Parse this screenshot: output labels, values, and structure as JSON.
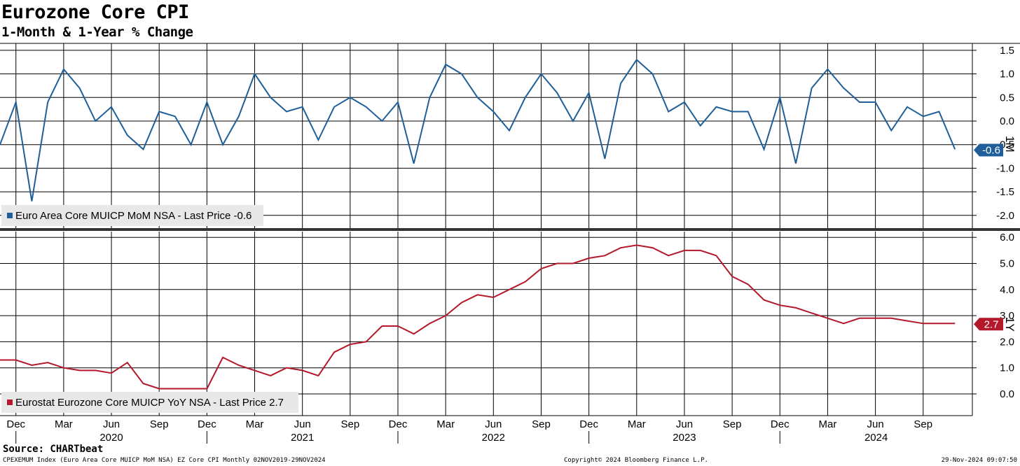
{
  "title": "Eurozone Core CPI",
  "subtitle": "1-Month & 1-Year % Change",
  "source": "Source: CHARTbeat",
  "footer": {
    "left": "CPEXEMUM Index (Euro Area Core MUICP MoM NSA) EZ Core CPI  Monthly 02NOV2019-29NOV2024",
    "center": "Copyright© 2024 Bloomberg Finance L.P.",
    "right": "29-Nov-2024 09:07:50"
  },
  "colors": {
    "mom": "#1f5f99",
    "yoy": "#b3192b"
  },
  "chart_data": [
    {
      "type": "line",
      "panel": "top",
      "axis_label": "1M",
      "last_value_label": "-0.6",
      "legend": "Euro Area Core MUICP MoM NSA - Last Price -0.6",
      "legend_position": "bottom-left",
      "ylim": [
        -2.3,
        1.7
      ],
      "yticks": [
        "1.5",
        "1.0",
        "0.5",
        "0.0",
        "-0.5",
        "-1.0",
        "-1.5",
        "-2.0"
      ],
      "grid": true,
      "x": [
        "2019-11",
        "2019-12",
        "2020-01",
        "2020-02",
        "2020-03",
        "2020-04",
        "2020-05",
        "2020-06",
        "2020-07",
        "2020-08",
        "2020-09",
        "2020-10",
        "2020-11",
        "2020-12",
        "2021-01",
        "2021-02",
        "2021-03",
        "2021-04",
        "2021-05",
        "2021-06",
        "2021-07",
        "2021-08",
        "2021-09",
        "2021-10",
        "2021-11",
        "2021-12",
        "2022-01",
        "2022-02",
        "2022-03",
        "2022-04",
        "2022-05",
        "2022-06",
        "2022-07",
        "2022-08",
        "2022-09",
        "2022-10",
        "2022-11",
        "2022-12",
        "2023-01",
        "2023-02",
        "2023-03",
        "2023-04",
        "2023-05",
        "2023-06",
        "2023-07",
        "2023-08",
        "2023-09",
        "2023-10",
        "2023-11",
        "2023-12",
        "2024-01",
        "2024-02",
        "2024-03",
        "2024-04",
        "2024-05",
        "2024-06",
        "2024-07",
        "2024-08",
        "2024-09",
        "2024-10",
        "2024-11"
      ],
      "series": [
        {
          "name": "Euro Area Core MUICP MoM NSA",
          "values": [
            -0.5,
            0.4,
            -1.7,
            0.4,
            1.1,
            0.7,
            0.0,
            0.3,
            -0.3,
            -0.6,
            0.2,
            0.1,
            -0.5,
            0.4,
            -0.5,
            0.1,
            1.0,
            0.5,
            0.2,
            0.3,
            -0.4,
            0.3,
            0.5,
            0.3,
            0.0,
            0.4,
            -0.9,
            0.5,
            1.2,
            1.0,
            0.5,
            0.2,
            -0.2,
            0.5,
            1.0,
            0.6,
            0.0,
            0.6,
            -0.8,
            0.8,
            1.3,
            1.0,
            0.2,
            0.4,
            -0.1,
            0.3,
            0.2,
            0.2,
            -0.6,
            0.5,
            -0.9,
            0.7,
            1.1,
            0.7,
            0.4,
            0.4,
            -0.2,
            0.3,
            0.1,
            0.2,
            -0.6
          ]
        }
      ]
    },
    {
      "type": "line",
      "panel": "bottom",
      "axis_label": "1Y",
      "last_value_label": "2.7",
      "legend": "Eurostat Eurozone Core MUICP YoY NSA - Last Price 2.7",
      "legend_position": "bottom-left",
      "ylim": [
        -0.8,
        6.2
      ],
      "yticks": [
        "6.0",
        "5.0",
        "4.0",
        "3.0",
        "2.0",
        "1.0",
        "0.0"
      ],
      "grid": true,
      "x_tick_months": [
        "Dec",
        "Mar",
        "Jun",
        "Sep",
        "Dec",
        "Mar",
        "Jun",
        "Sep",
        "Dec",
        "Mar",
        "Jun",
        "Sep",
        "Dec",
        "Mar",
        "Jun",
        "Sep",
        "Dec",
        "Mar",
        "Jun",
        "Sep"
      ],
      "x_years": [
        "2020",
        "2021",
        "2022",
        "2023",
        "2024"
      ],
      "x": [
        "2019-11",
        "2019-12",
        "2020-01",
        "2020-02",
        "2020-03",
        "2020-04",
        "2020-05",
        "2020-06",
        "2020-07",
        "2020-08",
        "2020-09",
        "2020-10",
        "2020-11",
        "2020-12",
        "2021-01",
        "2021-02",
        "2021-03",
        "2021-04",
        "2021-05",
        "2021-06",
        "2021-07",
        "2021-08",
        "2021-09",
        "2021-10",
        "2021-11",
        "2021-12",
        "2022-01",
        "2022-02",
        "2022-03",
        "2022-04",
        "2022-05",
        "2022-06",
        "2022-07",
        "2022-08",
        "2022-09",
        "2022-10",
        "2022-11",
        "2022-12",
        "2023-01",
        "2023-02",
        "2023-03",
        "2023-04",
        "2023-05",
        "2023-06",
        "2023-07",
        "2023-08",
        "2023-09",
        "2023-10",
        "2023-11",
        "2023-12",
        "2024-01",
        "2024-02",
        "2024-03",
        "2024-04",
        "2024-05",
        "2024-06",
        "2024-07",
        "2024-08",
        "2024-09",
        "2024-10",
        "2024-11"
      ],
      "series": [
        {
          "name": "Eurostat Eurozone Core MUICP YoY NSA",
          "values": [
            1.3,
            1.3,
            1.1,
            1.2,
            1.0,
            0.9,
            0.9,
            0.8,
            1.2,
            0.4,
            0.2,
            0.2,
            0.2,
            0.2,
            1.4,
            1.1,
            0.9,
            0.7,
            1.0,
            0.9,
            0.7,
            1.6,
            1.9,
            2.0,
            2.6,
            2.6,
            2.3,
            2.7,
            3.0,
            3.5,
            3.8,
            3.7,
            4.0,
            4.3,
            4.8,
            5.0,
            5.0,
            5.2,
            5.3,
            5.6,
            5.7,
            5.6,
            5.3,
            5.5,
            5.5,
            5.3,
            4.5,
            4.2,
            3.6,
            3.4,
            3.3,
            3.1,
            2.9,
            2.7,
            2.9,
            2.9,
            2.9,
            2.8,
            2.7,
            2.7,
            2.7
          ]
        }
      ]
    }
  ]
}
